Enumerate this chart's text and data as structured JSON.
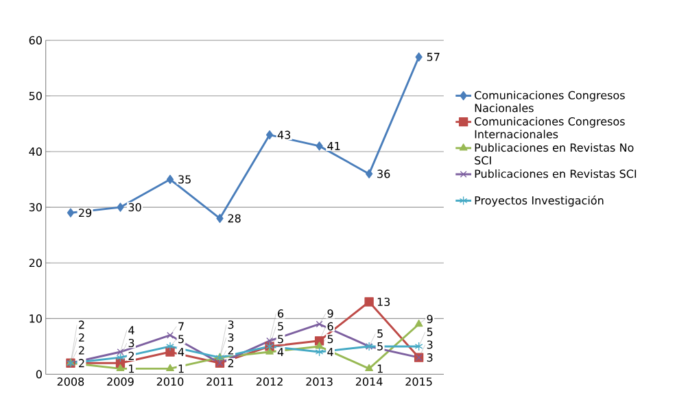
{
  "chart_data": {
    "type": "line",
    "categories": [
      "2008",
      "2009",
      "2010",
      "2011",
      "2012",
      "2013",
      "2014",
      "2015"
    ],
    "series": [
      {
        "name": "Comunicaciones Congresos Nacionales",
        "color": "#4a7ebb",
        "marker": "diamond",
        "values": [
          29,
          30,
          35,
          28,
          43,
          41,
          36,
          57
        ]
      },
      {
        "name": "Comunicaciones Congresos Internacionales",
        "color": "#be4b48",
        "marker": "square",
        "values": [
          2,
          2,
          4,
          2,
          5,
          6,
          13,
          3
        ]
      },
      {
        "name": "Publicaciones en Revistas No SCI",
        "color": "#98b954",
        "marker": "triangle",
        "values": [
          2,
          1,
          1,
          3,
          4,
          5,
          1,
          9
        ]
      },
      {
        "name": "Publicaciones en Revistas  SCI",
        "color": "#7d60a0",
        "marker": "cross",
        "values": [
          2,
          4,
          7,
          2,
          6,
          9,
          5,
          3
        ]
      },
      {
        "name": "Proyectos Investigación",
        "color": "#46aac5",
        "marker": "cross",
        "values": [
          2,
          3,
          5,
          3,
          5,
          4,
          5,
          5
        ]
      }
    ],
    "ylim": [
      0,
      60
    ],
    "yticks": [
      0,
      10,
      20,
      30,
      40,
      50,
      60
    ],
    "grid": "y",
    "legend": "right",
    "data_labels": true
  }
}
